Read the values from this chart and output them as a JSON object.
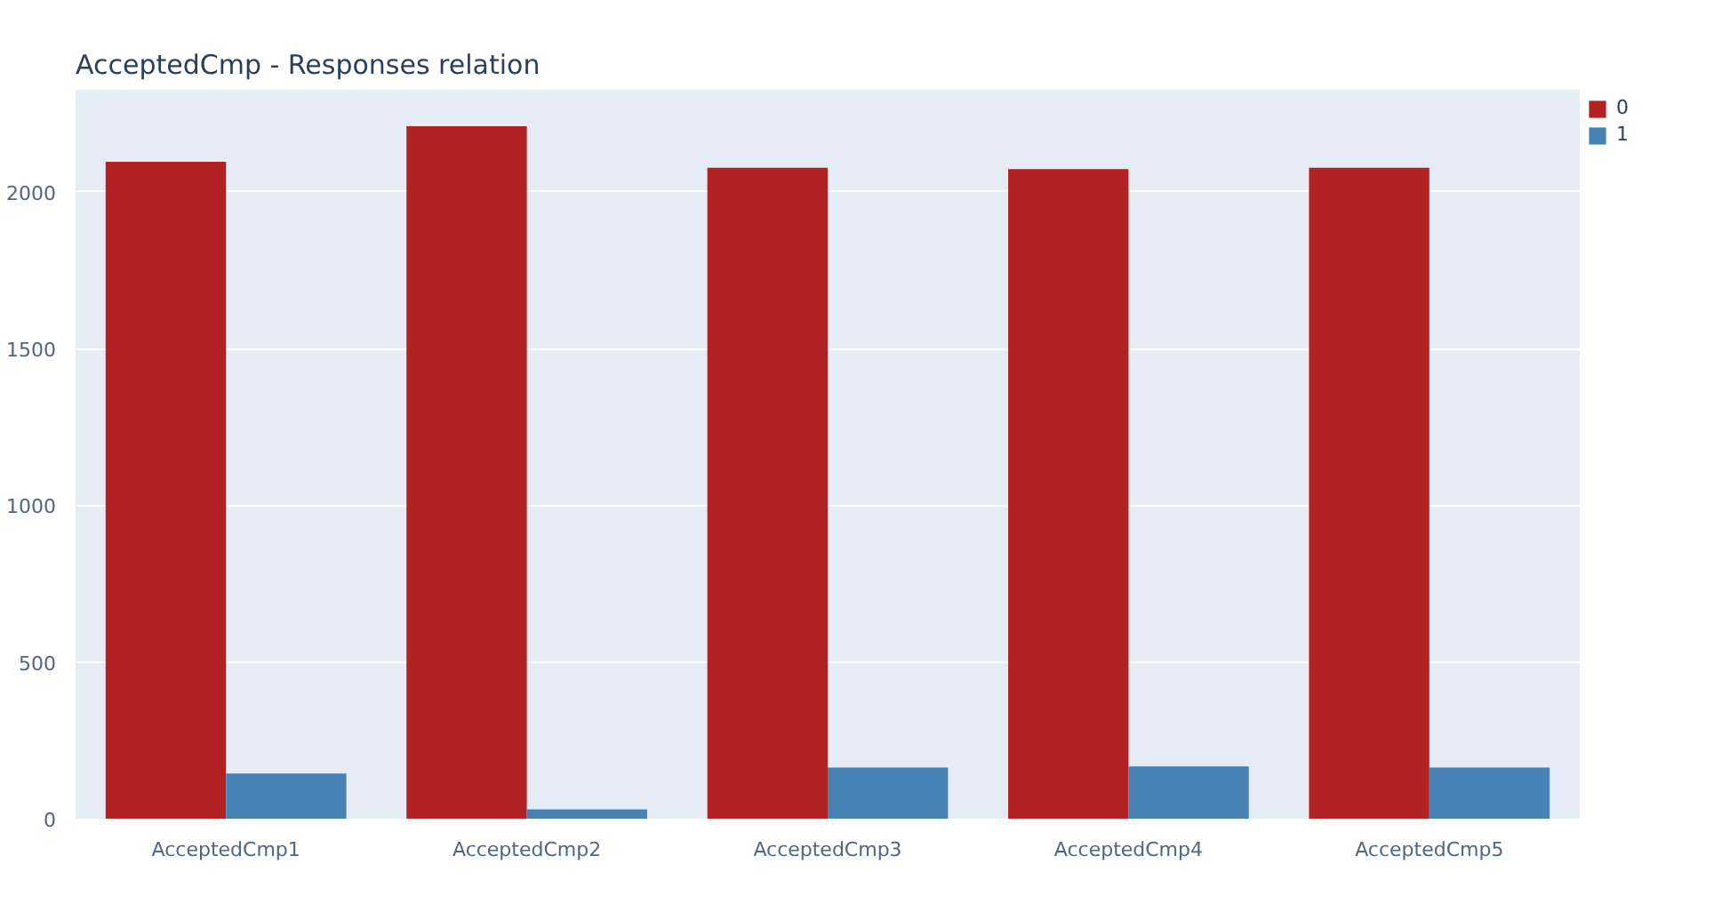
{
  "chart_data": {
    "type": "bar",
    "title": "AcceptedCmp - Responses relation",
    "categories": [
      "AcceptedCmp1",
      "AcceptedCmp2",
      "AcceptedCmp3",
      "AcceptedCmp4",
      "AcceptedCmp5"
    ],
    "series": [
      {
        "name": "0",
        "color": "#b22222",
        "values": [
          2096,
          2210,
          2077,
          2073,
          2077
        ]
      },
      {
        "name": "1",
        "color": "#4682b4",
        "values": [
          144,
          30,
          163,
          167,
          163
        ]
      }
    ],
    "ylim": [
      0,
      2326
    ],
    "yticks": [
      0,
      500,
      1000,
      1500,
      2000
    ],
    "grid": "y",
    "legend": "top right"
  }
}
